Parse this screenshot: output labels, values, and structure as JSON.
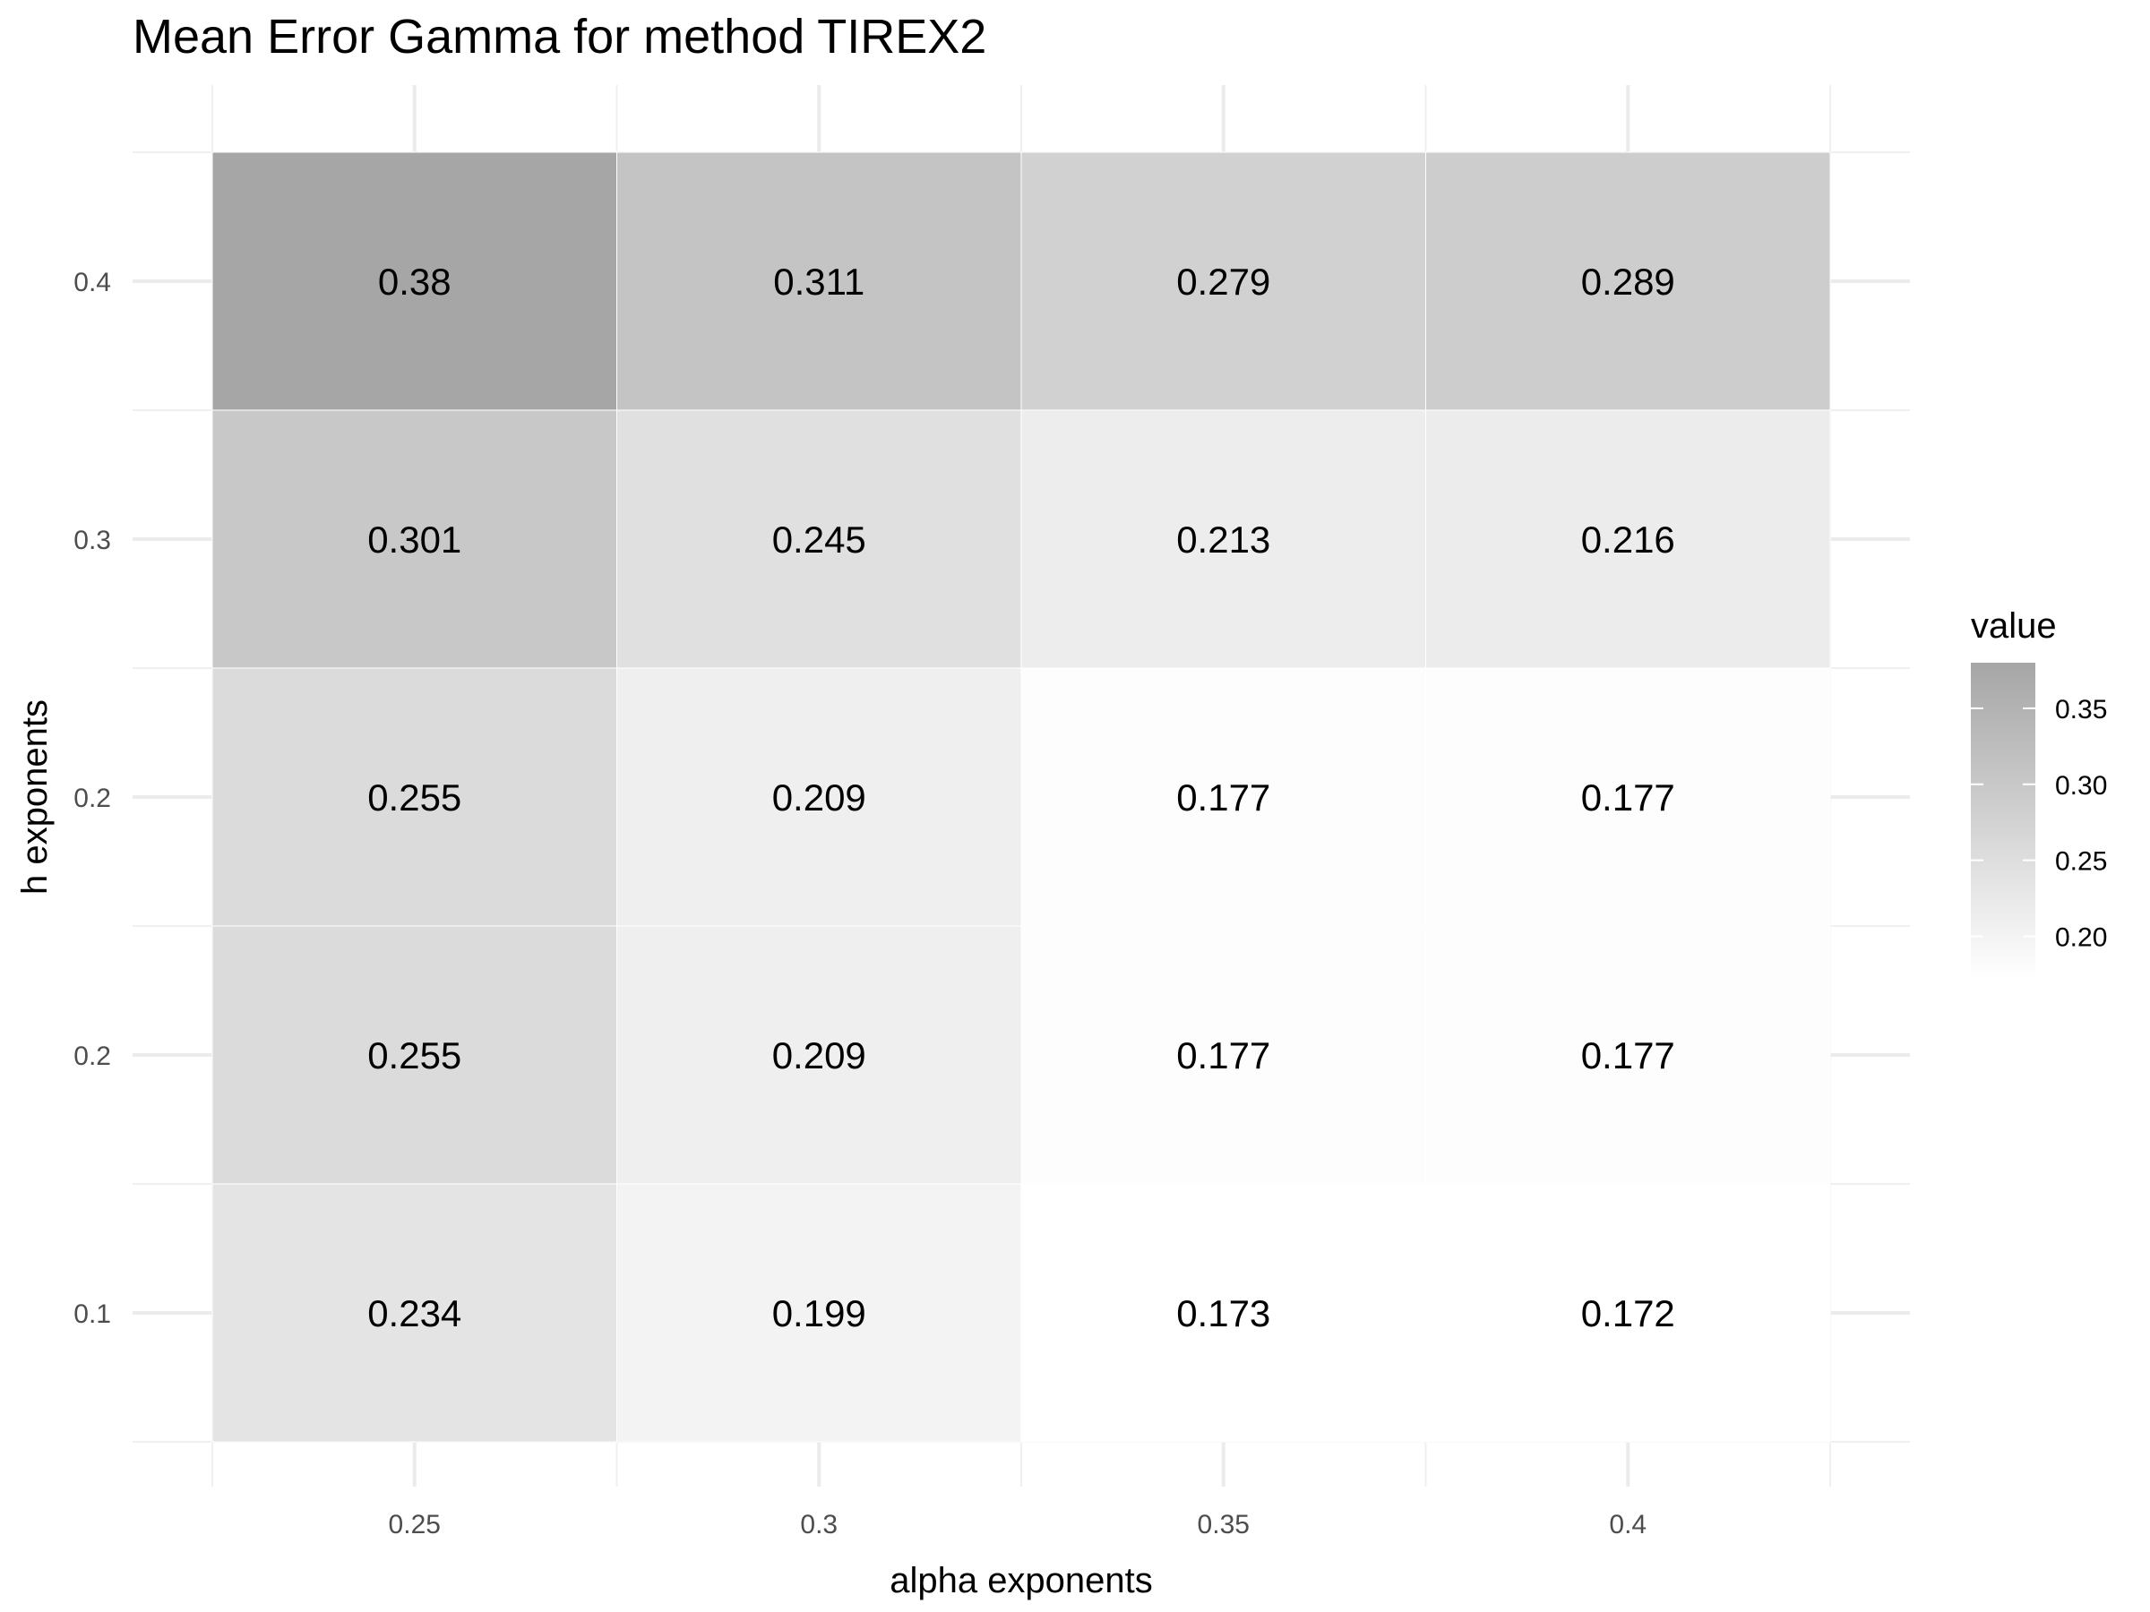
{
  "chart_data": {
    "type": "heatmap",
    "title": "Mean Error Gamma for method TIREX2",
    "xlabel": "alpha exponents",
    "ylabel": "h exponents",
    "x_categories": [
      "0.25",
      "0.3",
      "0.35",
      "0.4"
    ],
    "y_categories": [
      "0.1",
      "0.2",
      "0.2",
      "0.3",
      "0.4"
    ],
    "values": [
      [
        0.234,
        0.199,
        0.173,
        0.172
      ],
      [
        0.255,
        0.209,
        0.177,
        0.177
      ],
      [
        0.255,
        0.209,
        0.177,
        0.177
      ],
      [
        0.301,
        0.245,
        0.213,
        0.216
      ],
      [
        0.38,
        0.311,
        0.279,
        0.289
      ]
    ],
    "cell_labels": [
      [
        "0.234",
        "0.199",
        "0.173",
        "0.172"
      ],
      [
        "0.255",
        "0.209",
        "0.177",
        "0.177"
      ],
      [
        "0.255",
        "0.209",
        "0.177",
        "0.177"
      ],
      [
        "0.301",
        "0.245",
        "0.213",
        "0.216"
      ],
      [
        "0.38",
        "0.311",
        "0.279",
        "0.289"
      ]
    ],
    "legend": {
      "title": "value",
      "position": "right",
      "ticks": [
        0.2,
        0.25,
        0.3,
        0.35
      ],
      "tick_labels": [
        "0.20",
        "0.25",
        "0.30",
        "0.35"
      ],
      "range": [
        0.172,
        0.38
      ],
      "color_low": "#ffffff",
      "color_high": "#a6a6a6"
    },
    "grid": true
  }
}
